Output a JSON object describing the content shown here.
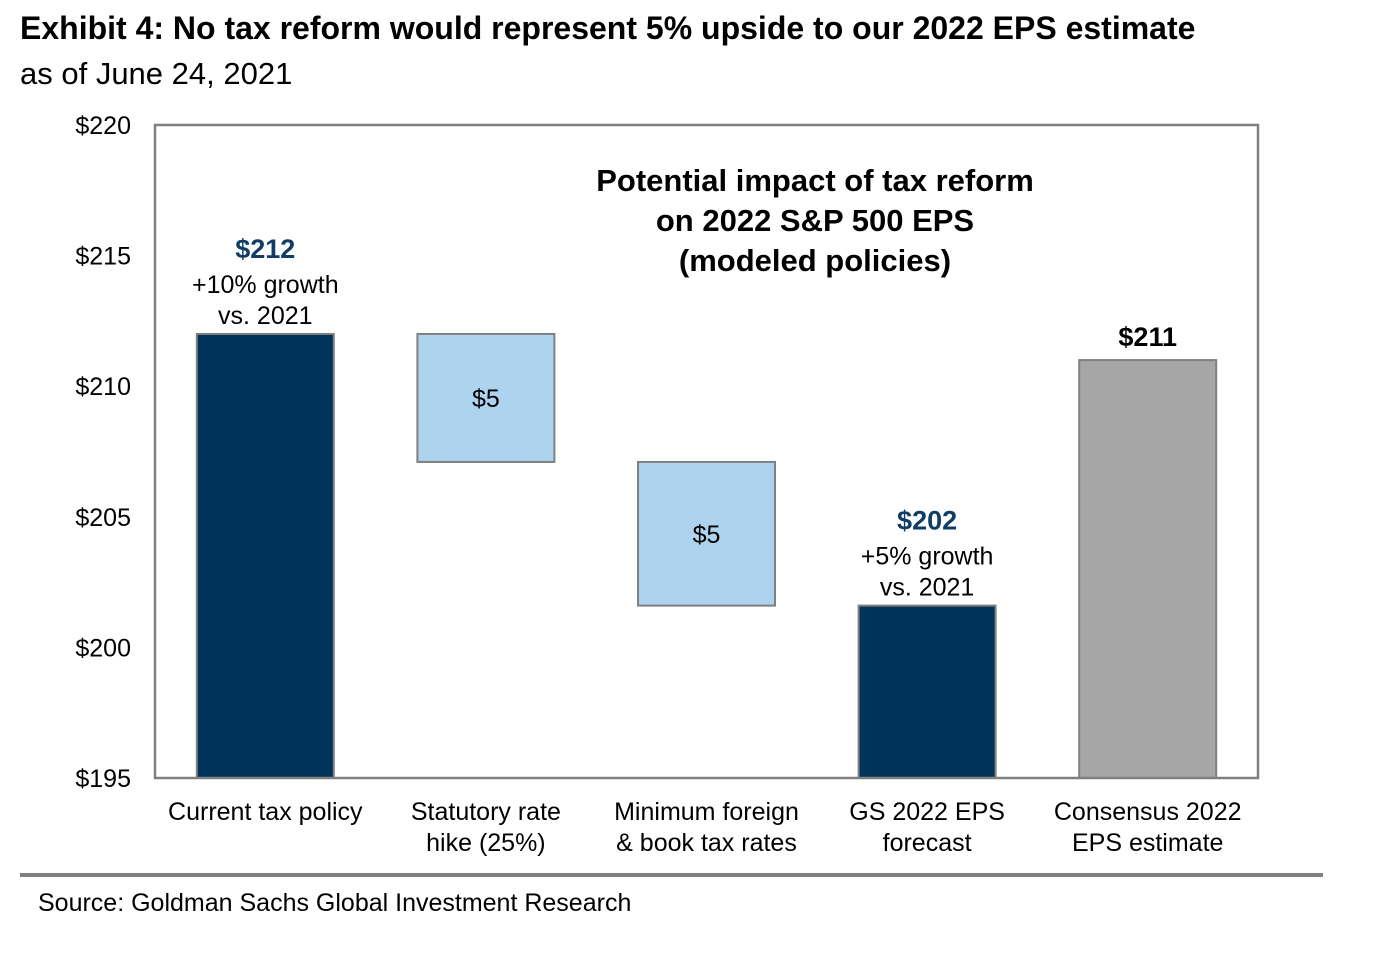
{
  "header": {
    "title": "Exhibit 4: No tax reform would represent 5% upside to our 2022 EPS estimate",
    "subtitle": "as of June 24, 2021"
  },
  "footer": {
    "source": "Source: Goldman Sachs Global Investment Research"
  },
  "colors": {
    "dark_navy": "#003359",
    "light_blue": "#AED3EF",
    "gray": "#A6A6A6",
    "border": "#808080",
    "navy_label": "#0F3D66"
  },
  "chart_data": {
    "type": "bar",
    "subtype": "waterfall",
    "title": "Potential impact of tax reform on 2022 S&P 500 EPS (modeled policies)",
    "title_lines": [
      "Potential impact of tax reform",
      "on 2022 S&P 500 EPS",
      "(modeled policies)"
    ],
    "xlabel": "",
    "ylabel": "",
    "ylim": [
      195,
      220
    ],
    "yticks": [
      195,
      200,
      205,
      210,
      215,
      220
    ],
    "ytick_labels": [
      "$195",
      "$200",
      "$205",
      "$210",
      "$215",
      "$220"
    ],
    "grid": false,
    "legend": "none",
    "categories": [
      [
        "Current tax policy"
      ],
      [
        "Statutory rate",
        "hike (25%)"
      ],
      [
        "Minimum foreign",
        "& book tax rates"
      ],
      [
        "GS 2022 EPS",
        "forecast"
      ],
      [
        "Consensus 2022",
        "EPS estimate"
      ]
    ],
    "bars": [
      {
        "name": "Current tax policy",
        "kind": "total",
        "start": 195,
        "end": 212,
        "value": 212,
        "color": "#003359",
        "label": "$212",
        "label_color": "#0F3D66",
        "sublabel": [
          "+10% growth",
          "vs. 2021"
        ],
        "label_position": "above"
      },
      {
        "name": "Statutory rate hike (25%)",
        "kind": "decrease",
        "start": 207.1,
        "end": 212,
        "value": -5,
        "color": "#AED3EF",
        "label": "$5",
        "label_position": "inside"
      },
      {
        "name": "Minimum foreign & book tax rates",
        "kind": "decrease",
        "start": 201.6,
        "end": 207.1,
        "value": -5,
        "color": "#AED3EF",
        "label": "$5",
        "label_position": "inside"
      },
      {
        "name": "GS 2022 EPS forecast",
        "kind": "total",
        "start": 195,
        "end": 201.6,
        "value": 202,
        "color": "#003359",
        "label": "$202",
        "label_color": "#0F3D66",
        "sublabel": [
          "+5% growth",
          "vs. 2021"
        ],
        "label_position": "above"
      },
      {
        "name": "Consensus 2022 EPS estimate",
        "kind": "total",
        "start": 195,
        "end": 211,
        "value": 211,
        "color": "#A6A6A6",
        "label": "$211",
        "label_color": "#000000",
        "sublabel": [],
        "label_position": "above"
      }
    ]
  }
}
